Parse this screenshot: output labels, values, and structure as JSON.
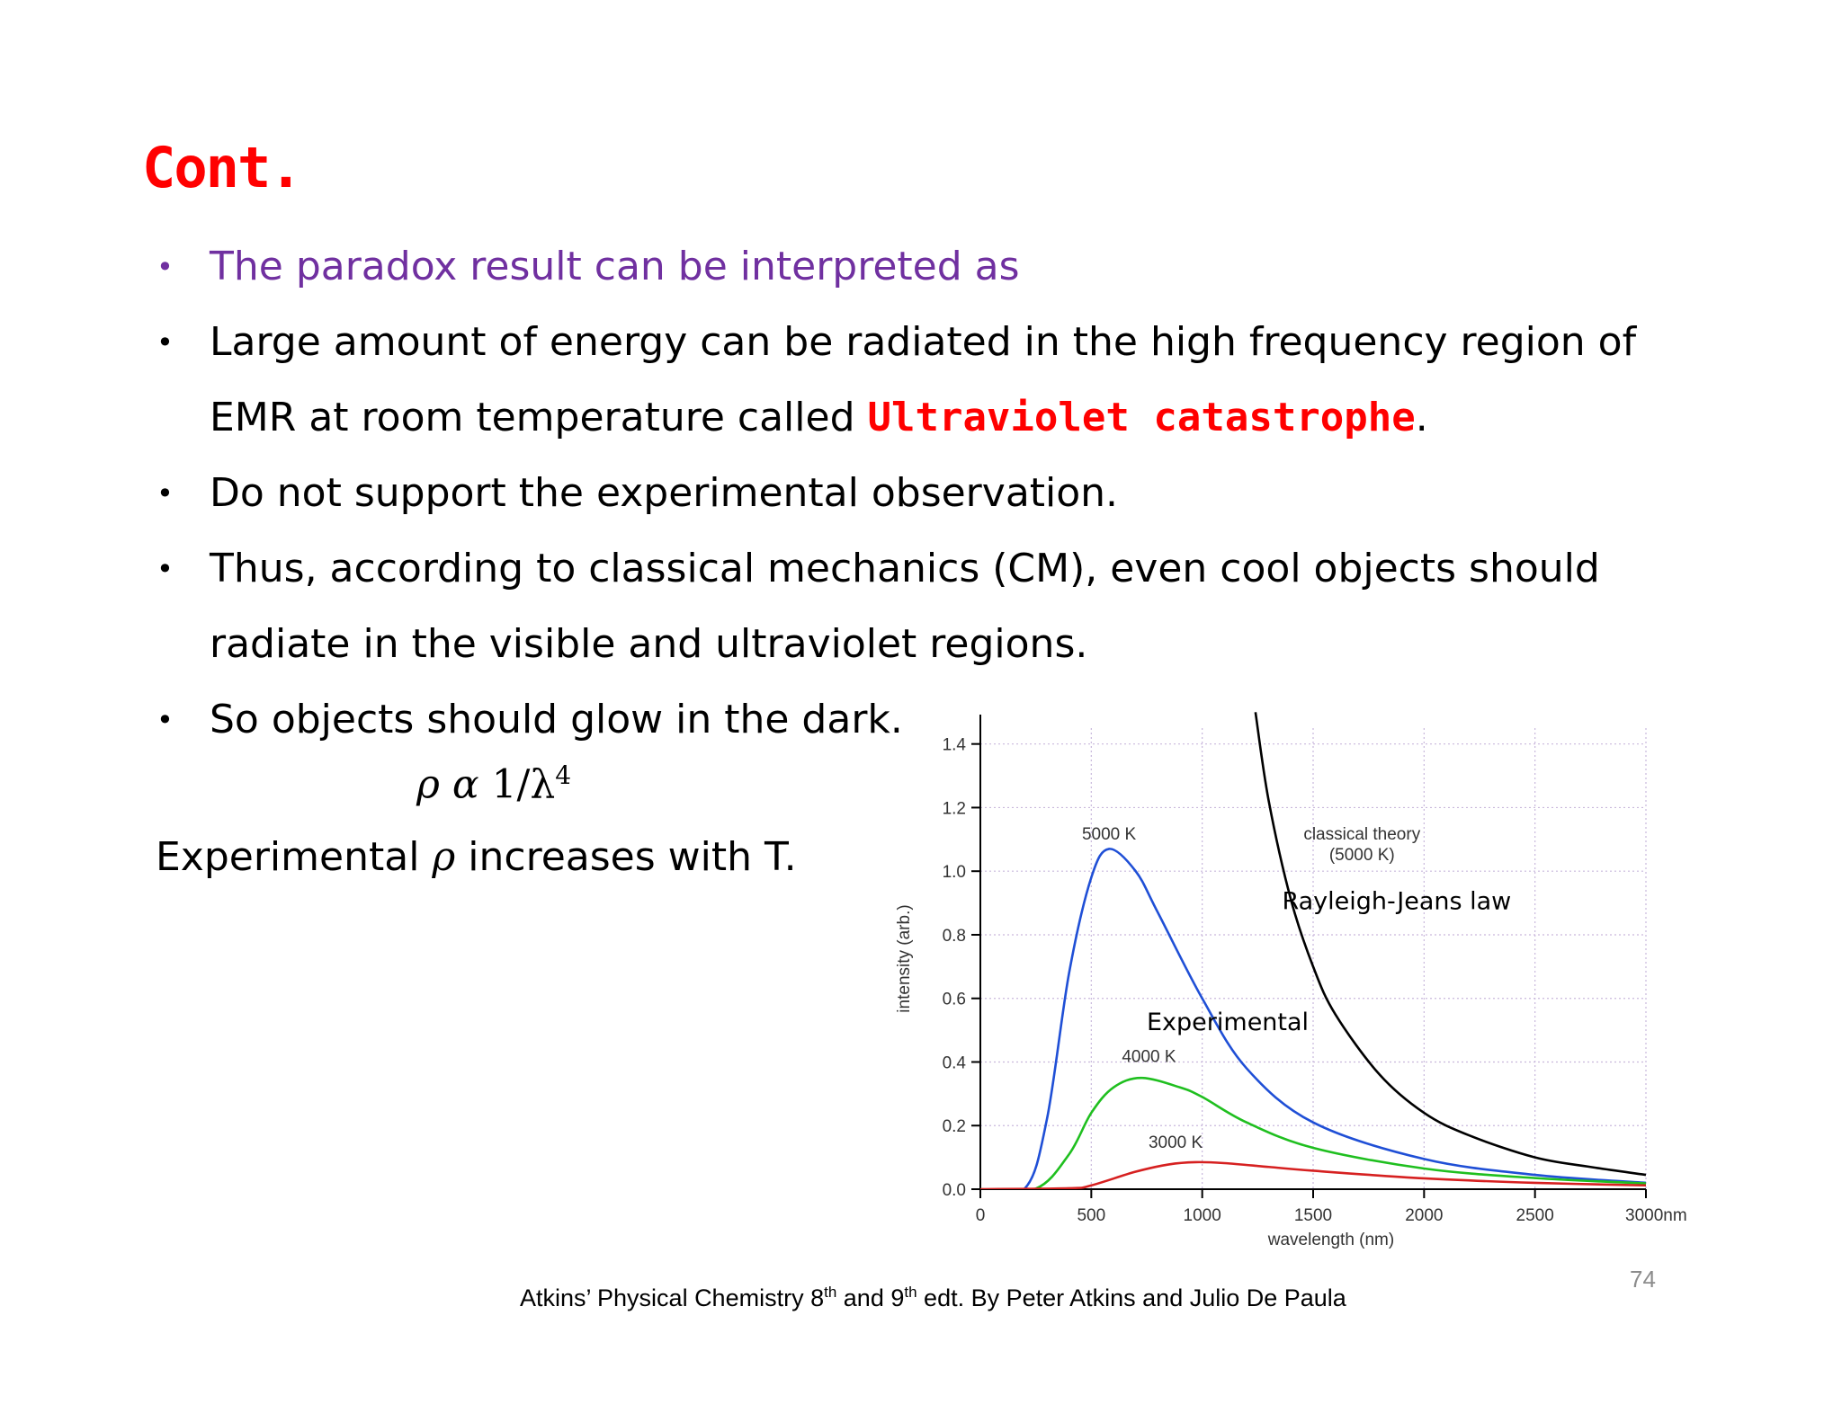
{
  "slide": {
    "title": "Cont.",
    "bullet_char": "•",
    "bullets": [
      {
        "text": "The paradox result can be interpreted as"
      },
      {
        "text_before": "Large amount of energy can be radiated in the high frequency region of EMR at room temperature called ",
        "highlight": "Ultraviolet catastrophe",
        "text_after": "."
      },
      {
        "text": "Do not support the experimental observation."
      },
      {
        "text": "Thus, according to classical mechanics (CM), even cool objects should radiate in the visible and ultraviolet regions."
      },
      {
        "text": "So objects should glow in the dark."
      }
    ],
    "formula": {
      "lhs": "ρ α ",
      "num": "1/λ",
      "exp": "4"
    },
    "experimental_line": {
      "before": "Experimental ",
      "rho": "ρ",
      "after": " increases with T."
    },
    "citation": {
      "a": "Atkins’ Physical Chemistry  8",
      "sup1": "th",
      "b": "  and 9",
      "sup2": "th",
      "c": " edt. By Peter Atkins and Julio De Paula"
    },
    "page_number": "74"
  },
  "colors": {
    "title": "#ff0000",
    "purple_bullet": "#7030a0",
    "highlight": "#ff0000",
    "curve_5000": "#1f4fd6",
    "curve_4000": "#1fbf1f",
    "curve_3000": "#d62020",
    "classical": "#000000",
    "grid": "#c9b8dc"
  },
  "chart_data": {
    "type": "line",
    "xlabel": "wavelength (nm)",
    "ylabel": "intensity (arb.)",
    "xlim": [
      0,
      3000
    ],
    "ylim": [
      0,
      1.45
    ],
    "x_ticks": [
      "0",
      "500",
      "1000",
      "1500",
      "2000",
      "2500",
      "3000nm"
    ],
    "y_ticks": [
      "0.0",
      "0.2",
      "0.4",
      "0.6",
      "0.8",
      "1.0",
      "1.2",
      "1.4"
    ],
    "grid": true,
    "series": [
      {
        "label": "5000 K",
        "peak_x": 580,
        "peak_y": 1.07,
        "points": [
          [
            0,
            0
          ],
          [
            200,
            0.002
          ],
          [
            300,
            0.22
          ],
          [
            400,
            0.68
          ],
          [
            500,
            0.98
          ],
          [
            580,
            1.07
          ],
          [
            700,
            1.0
          ],
          [
            800,
            0.87
          ],
          [
            1000,
            0.6
          ],
          [
            1200,
            0.38
          ],
          [
            1500,
            0.21
          ],
          [
            2000,
            0.095
          ],
          [
            2500,
            0.045
          ],
          [
            3000,
            0.02
          ]
        ]
      },
      {
        "label": "4000 K",
        "peak_x": 725,
        "peak_y": 0.35,
        "points": [
          [
            0,
            0
          ],
          [
            250,
            0.002
          ],
          [
            400,
            0.11
          ],
          [
            500,
            0.24
          ],
          [
            600,
            0.32
          ],
          [
            725,
            0.35
          ],
          [
            900,
            0.32
          ],
          [
            1000,
            0.29
          ],
          [
            1200,
            0.21
          ],
          [
            1500,
            0.13
          ],
          [
            2000,
            0.065
          ],
          [
            2500,
            0.035
          ],
          [
            3000,
            0.018
          ]
        ]
      },
      {
        "label": "3000 K",
        "peak_x": 970,
        "peak_y": 0.085,
        "points": [
          [
            0,
            0
          ],
          [
            400,
            0.003
          ],
          [
            500,
            0.012
          ],
          [
            700,
            0.055
          ],
          [
            850,
            0.078
          ],
          [
            970,
            0.085
          ],
          [
            1100,
            0.082
          ],
          [
            1300,
            0.07
          ],
          [
            1500,
            0.058
          ],
          [
            2000,
            0.034
          ],
          [
            2500,
            0.02
          ],
          [
            3000,
            0.012
          ]
        ]
      },
      {
        "label": "classical theory (5000 K)",
        "points": [
          [
            1240,
            1.5
          ],
          [
            1300,
            1.22
          ],
          [
            1400,
            0.91
          ],
          [
            1500,
            0.7
          ],
          [
            1600,
            0.55
          ],
          [
            1800,
            0.36
          ],
          [
            2000,
            0.24
          ],
          [
            2200,
            0.17
          ],
          [
            2500,
            0.1
          ],
          [
            2750,
            0.07
          ],
          [
            3000,
            0.045
          ]
        ]
      }
    ],
    "labels": {
      "s5000": "5000 K",
      "s4000": "4000 K",
      "s3000": "3000 K",
      "classical_1": "classical theory",
      "classical_2": "(5000 K)",
      "rayleigh_jeans": "Rayleigh-Jeans law",
      "experimental": "Experimental"
    }
  }
}
